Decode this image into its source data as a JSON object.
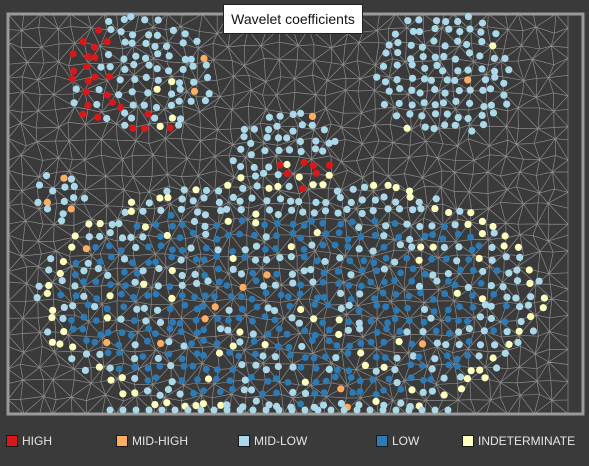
{
  "title": "Wavelet coefficients",
  "legend": [
    {
      "key": "high",
      "label": "HIGH",
      "color": "#d7191c"
    },
    {
      "key": "mid_high",
      "label": "MID-HIGH",
      "color": "#fdae61"
    },
    {
      "key": "mid_low",
      "label": "MID-LOW",
      "color": "#abd9e9"
    },
    {
      "key": "low",
      "label": "LOW",
      "color": "#2c7bb6"
    },
    {
      "key": "indeterminate",
      "label": "INDETERMINATE",
      "color": "#ffffbf"
    }
  ],
  "colors": {
    "background": "#3a3a3a",
    "mesh_edge": "#9a9a9a",
    "border": "#9a9a9a"
  }
}
